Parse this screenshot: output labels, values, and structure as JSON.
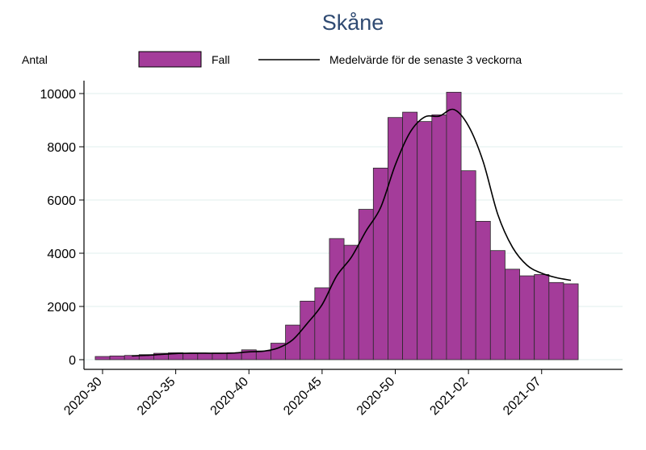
{
  "chart_data": {
    "type": "bar",
    "title": "Skåne",
    "ylabel": "Antal",
    "xlabel": "",
    "ylim": [
      0,
      10000
    ],
    "yticks": [
      0,
      2000,
      4000,
      6000,
      8000,
      10000
    ],
    "grid": true,
    "legend_position": "top",
    "x_tick_labels": [
      "2020-30",
      "2020-35",
      "2020-40",
      "2020-45",
      "2020-50",
      "2021-02",
      "2021-07"
    ],
    "categories": [
      "2020-30",
      "2020-31",
      "2020-32",
      "2020-33",
      "2020-34",
      "2020-35",
      "2020-36",
      "2020-37",
      "2020-38",
      "2020-39",
      "2020-40",
      "2020-41",
      "2020-42",
      "2020-43",
      "2020-44",
      "2020-45",
      "2020-46",
      "2020-47",
      "2020-48",
      "2020-49",
      "2020-50",
      "2020-51",
      "2020-52",
      "2020-53",
      "2021-01",
      "2021-02",
      "2021-03",
      "2021-04",
      "2021-05",
      "2021-06",
      "2021-07",
      "2021-08",
      "2021-09"
    ],
    "series": [
      {
        "name": "Fall",
        "kind": "bar",
        "color": "#a43c9a",
        "values": [
          120,
          140,
          160,
          190,
          240,
          260,
          230,
          240,
          250,
          260,
          370,
          330,
          620,
          1300,
          2200,
          2700,
          4550,
          4300,
          5650,
          7200,
          9100,
          9300,
          8950,
          9200,
          10050,
          7100,
          5200,
          4100,
          3400,
          3150,
          3200,
          2900,
          2850
        ]
      },
      {
        "name": "Medelvärde för de senaste 3 veckorna",
        "kind": "line",
        "color": "#000000",
        "values": [
          null,
          null,
          140,
          163,
          197,
          230,
          243,
          243,
          240,
          250,
          293,
          320,
          440,
          750,
          1373,
          2067,
          3150,
          3850,
          4833,
          5717,
          7317,
          8533,
          9117,
          9150,
          9400,
          8783,
          7450,
          5467,
          4233,
          3550,
          3250,
          3083,
          2983
        ]
      }
    ]
  }
}
